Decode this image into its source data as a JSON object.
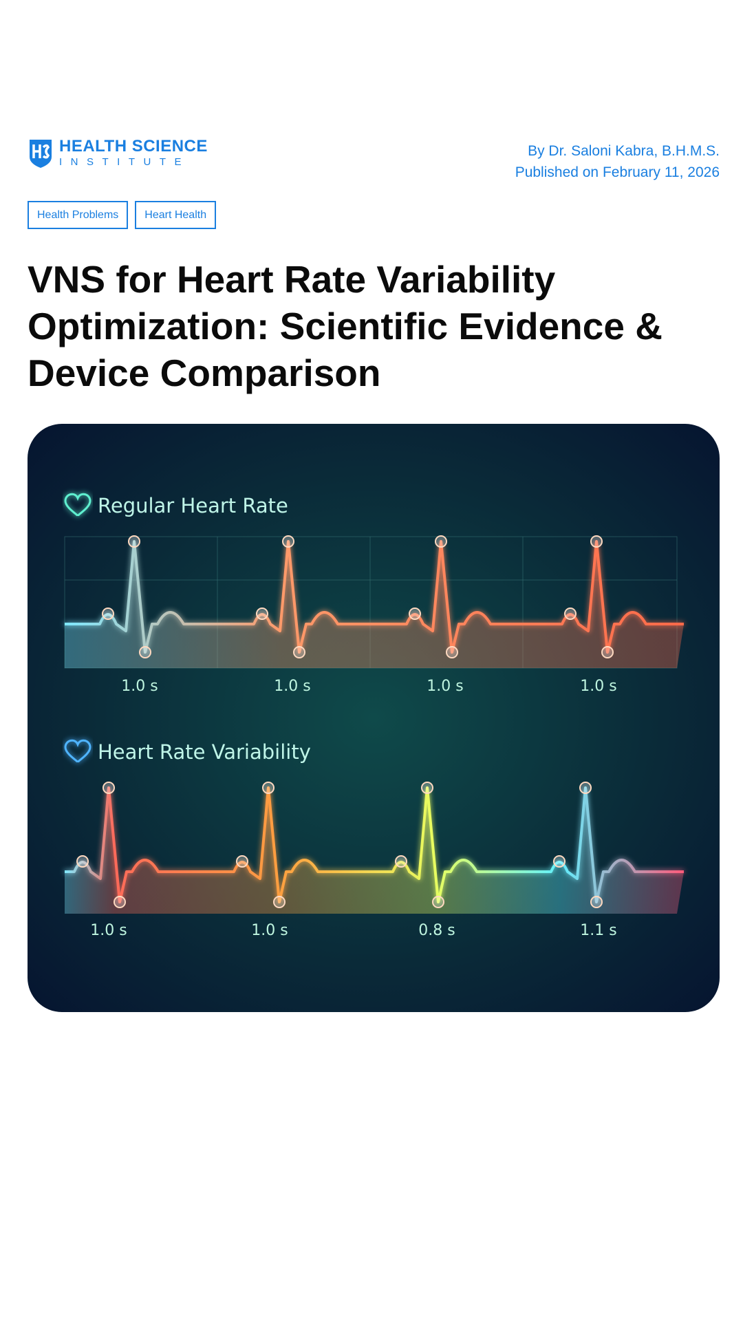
{
  "header": {
    "logo": {
      "name": "HEALTH SCIENCE",
      "sub": "INSTITUTE"
    },
    "byline": "By Dr. Saloni Kabra, B.H.M.S.",
    "published": "Published on February 11, 2026"
  },
  "tags": [
    "Health Problems",
    "Heart Health"
  ],
  "title": "VNS for Heart Rate Variability Optimization: Scientific Evidence & Device Comparison",
  "illustration": {
    "panels": [
      {
        "title": "Regular Heart Rate",
        "intervals": [
          "1.0 s",
          "1.0 s",
          "1.0 s",
          "1.0 s"
        ]
      },
      {
        "title": "Heart Rate Variability",
        "intervals": [
          "1.0 s",
          "1.0 s",
          "0.8 s",
          "1.1 s"
        ]
      }
    ]
  }
}
